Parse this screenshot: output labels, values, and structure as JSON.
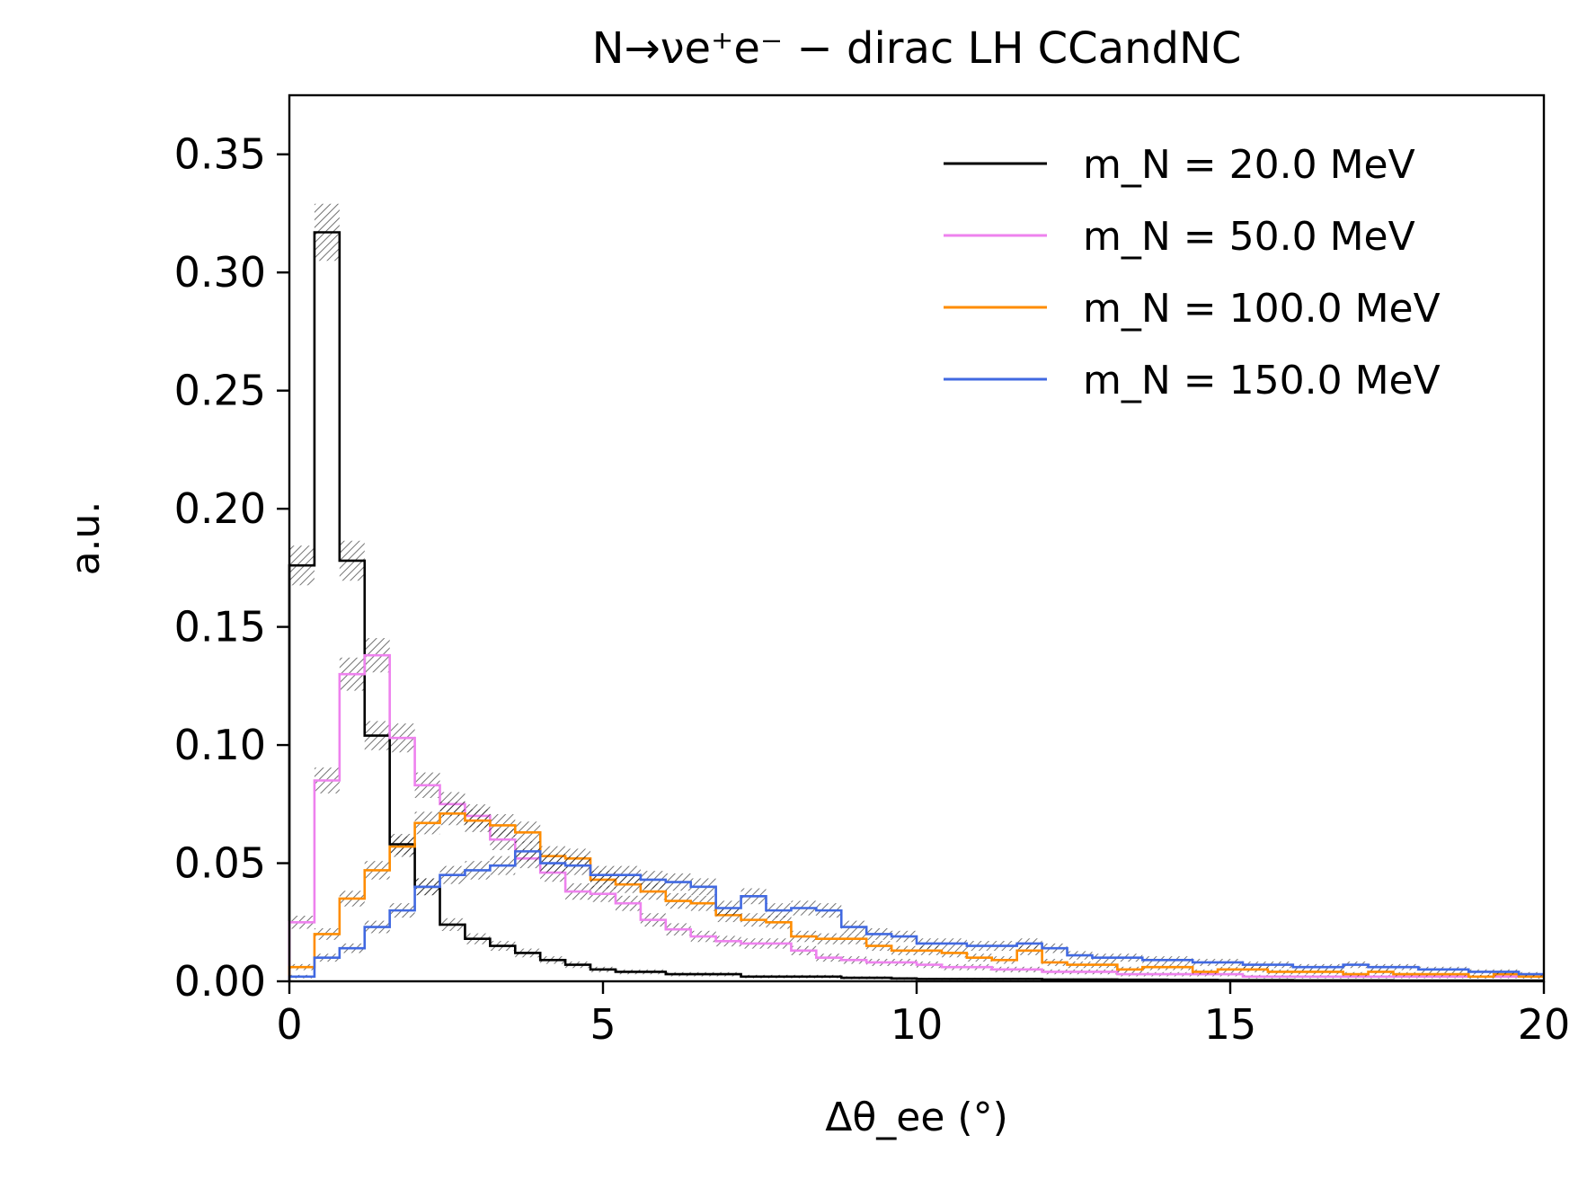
{
  "chart_data": {
    "type": "line",
    "title": "N→νe⁺e⁻ − dirac LH CCandNC",
    "xlabel": "Δθ_ee (°)",
    "ylabel": "a.u.",
    "xlim": [
      0,
      20
    ],
    "ylim": [
      0,
      0.375
    ],
    "x_ticks": [
      "0",
      "5",
      "10",
      "15",
      "20"
    ],
    "y_ticks": [
      "0.00",
      "0.05",
      "0.10",
      "0.15",
      "0.20",
      "0.25",
      "0.30",
      "0.35"
    ],
    "bin_width": 0.4,
    "grid": false,
    "legend_position": "top-right",
    "series": [
      {
        "name": "m_N = 20.0 MeV",
        "color": "#000000",
        "values": [
          0.176,
          0.317,
          0.178,
          0.104,
          0.058,
          0.04,
          0.024,
          0.018,
          0.015,
          0.012,
          0.009,
          0.007,
          0.005,
          0.004,
          0.004,
          0.003,
          0.003,
          0.003,
          0.002,
          0.002,
          0.002,
          0.002,
          0.0015,
          0.0015,
          0.0012,
          0.001,
          0.001,
          0.001,
          0.001,
          0.001,
          0.0008,
          0.0008,
          0.0008,
          0.0007,
          0.0007,
          0.0006,
          0.0006,
          0.0005,
          0.0005,
          0.0005,
          0.0004,
          0.0004,
          0.0004,
          0.0004,
          0.0003,
          0.0003,
          0.0003,
          0.0003,
          0.0003,
          0.0003
        ]
      },
      {
        "name": "m_N = 50.0 MeV",
        "color": "#ee82ee",
        "values": [
          0.025,
          0.085,
          0.13,
          0.138,
          0.103,
          0.083,
          0.075,
          0.07,
          0.06,
          0.052,
          0.046,
          0.038,
          0.037,
          0.033,
          0.026,
          0.022,
          0.019,
          0.017,
          0.016,
          0.016,
          0.013,
          0.01,
          0.009,
          0.008,
          0.008,
          0.007,
          0.006,
          0.006,
          0.005,
          0.005,
          0.004,
          0.004,
          0.004,
          0.003,
          0.003,
          0.003,
          0.003,
          0.003,
          0.002,
          0.002,
          0.002,
          0.002,
          0.002,
          0.002,
          0.002,
          0.002,
          0.002,
          0.002,
          0.002,
          0.002
        ]
      },
      {
        "name": "m_N = 100.0 MeV",
        "color": "#ff8c00",
        "values": [
          0.006,
          0.02,
          0.035,
          0.047,
          0.057,
          0.067,
          0.071,
          0.068,
          0.066,
          0.063,
          0.053,
          0.052,
          0.043,
          0.041,
          0.038,
          0.034,
          0.033,
          0.028,
          0.026,
          0.025,
          0.019,
          0.018,
          0.018,
          0.015,
          0.013,
          0.013,
          0.012,
          0.01,
          0.009,
          0.013,
          0.008,
          0.007,
          0.007,
          0.005,
          0.006,
          0.006,
          0.004,
          0.005,
          0.005,
          0.004,
          0.004,
          0.004,
          0.003,
          0.004,
          0.003,
          0.003,
          0.003,
          0.002,
          0.003,
          0.002
        ]
      },
      {
        "name": "m_N = 150.0 MeV",
        "color": "#4169e1",
        "values": [
          0.002,
          0.01,
          0.014,
          0.023,
          0.03,
          0.04,
          0.045,
          0.047,
          0.049,
          0.055,
          0.05,
          0.049,
          0.045,
          0.045,
          0.043,
          0.042,
          0.04,
          0.031,
          0.036,
          0.03,
          0.031,
          0.03,
          0.023,
          0.02,
          0.019,
          0.016,
          0.016,
          0.015,
          0.015,
          0.016,
          0.014,
          0.011,
          0.01,
          0.01,
          0.009,
          0.009,
          0.008,
          0.008,
          0.007,
          0.007,
          0.006,
          0.006,
          0.007,
          0.006,
          0.006,
          0.005,
          0.005,
          0.004,
          0.004,
          0.003
        ]
      }
    ]
  }
}
